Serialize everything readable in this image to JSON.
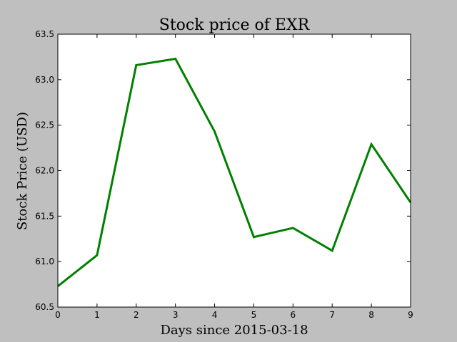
{
  "chart_data": {
    "type": "line",
    "title": "Stock price of EXR",
    "xlabel": "Days since 2015-03-18",
    "ylabel": "Stock Price (USD)",
    "xlim": [
      0,
      9
    ],
    "ylim": [
      60.5,
      63.5
    ],
    "xticks": [
      "0",
      "1",
      "2",
      "3",
      "4",
      "5",
      "6",
      "7",
      "8",
      "9"
    ],
    "yticks": [
      "60.5",
      "61.0",
      "61.5",
      "62.0",
      "62.5",
      "63.0",
      "63.5"
    ],
    "grid": false,
    "legend": "none",
    "series": [
      {
        "color": "#008000",
        "x": [
          0,
          1,
          2,
          3,
          4,
          5,
          6,
          7,
          8,
          9
        ],
        "y": [
          60.73,
          61.07,
          63.16,
          63.23,
          62.43,
          61.27,
          61.37,
          61.12,
          62.29,
          61.65
        ]
      }
    ]
  }
}
